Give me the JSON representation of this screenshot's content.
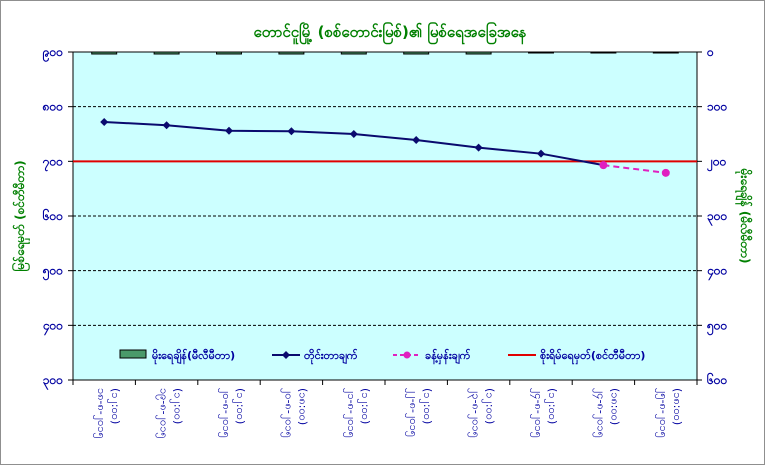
{
  "chart_data": {
    "type": "line",
    "title": "တောင်ငူမြို့ (စစ်တောင်းမြစ်)၏ မြစ်ရေအခြေအနေ",
    "ylabel_left": "မြစ်ရေမှတ် (စင်တီမီတာ)",
    "ylabel_right": "မိုးရေချိန် (မီလီမီတာ)",
    "left_axis": {
      "min": 300,
      "max": 900,
      "ticks": [
        "၃၀၀",
        "၄၀၀",
        "၅၀၀",
        "၆၀၀",
        "၇၀၀",
        "၈၀၀",
        "၉၀၀"
      ]
    },
    "right_axis": {
      "min": 0,
      "max": 600,
      "reversed": true,
      "ticks": [
        "၀",
        "၁၀၀",
        "၂၀၀",
        "၃၀၀",
        "၄၀၀",
        "၅၀၀",
        "၆၀၀"
      ]
    },
    "categories": [
      [
        "၁၈-၈-၂၀၁၅",
        "(၁၂:၀၀)"
      ],
      [
        "၁၉-၈-၂၀၁၅",
        "(၁၂:၀၀)"
      ],
      [
        "၂၀-၈-၂၀၁၅",
        "(၁၂:၀၀)"
      ],
      [
        "၂၀-၈-၂၀၁၅",
        "(၁၈:၀၀)"
      ],
      [
        "၂၁-၈-၂၀၁၅",
        "(၁၂:၀၀)"
      ],
      [
        "၂၂-၈-၂၀၁၅",
        "(၁၂:၀၀)"
      ],
      [
        "၂၃-၈-၂၀၁၅",
        "(၁၂:၀၀)"
      ],
      [
        "၂၄-၈-၂၀၁၅",
        "(၁၂:၀၀)"
      ],
      [
        "၂၄-၈-၂၀၁၅",
        "(၁၈:၀၀)"
      ],
      [
        "၂၅-၈-၂၀၁၅",
        "(၁၈:၀၀)"
      ]
    ],
    "series": [
      {
        "name": "မိုးရေချိန်(မီလီမီတာ)",
        "type": "bar",
        "axis": "right",
        "color": "#4a9a6a",
        "values": [
          1,
          1,
          3,
          3,
          1,
          3,
          1,
          0,
          0,
          0
        ]
      },
      {
        "name": "တိုင်းတာချက်",
        "type": "line",
        "axis": "left",
        "color": "#0a0a6e",
        "marker": "diamond",
        "values": [
          772,
          766,
          756,
          755,
          750,
          739,
          725,
          714,
          693,
          null
        ]
      },
      {
        "name": "ခန့်မှန်းချက်",
        "type": "line",
        "axis": "left",
        "color": "#e020c0",
        "marker": "circle",
        "dashed": true,
        "values": [
          null,
          null,
          null,
          null,
          null,
          null,
          null,
          null,
          693,
          679
        ]
      },
      {
        "name": "စိုးရိမ်ရေမှတ်(စင်တီမီတာ)",
        "type": "hline",
        "axis": "left",
        "color": "#e00000",
        "value": 700
      }
    ],
    "grid": true,
    "legend_position": "bottom-inside"
  }
}
